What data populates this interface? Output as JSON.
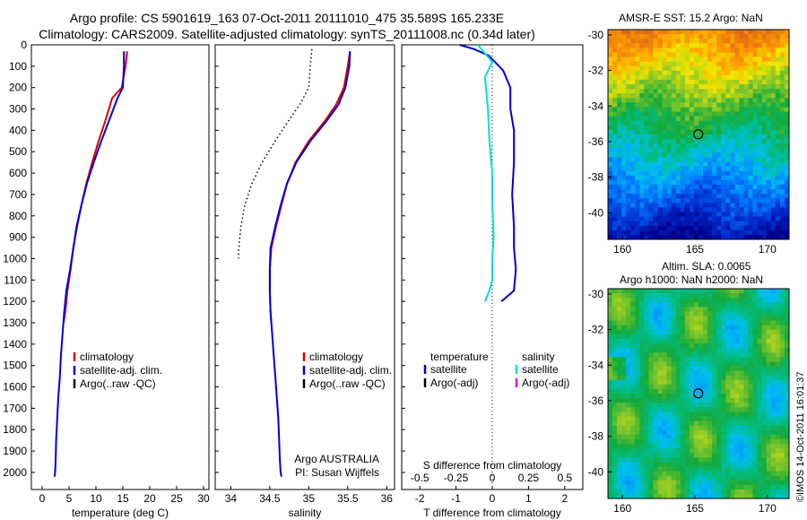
{
  "header": {
    "line1": "Argo profile: CS 5901619_163 07-Oct-2011 20111010_475 35.589S 165.233E",
    "line2": "Climatology: CARS2009. Satellite-adjusted climatology: synTS_20111008.nc (0.34d later)"
  },
  "chart_data": [
    {
      "type": "line",
      "panel": "temperature",
      "xlabel": "temperature (deg C)",
      "ylabel": "",
      "xlim": [
        -2,
        31
      ],
      "ylim": [
        2080,
        0
      ],
      "xticks": [
        0,
        5,
        10,
        15,
        20,
        25,
        30
      ],
      "yticks": [
        0,
        100,
        200,
        300,
        400,
        500,
        600,
        700,
        800,
        900,
        1000,
        1100,
        1200,
        1300,
        1400,
        1500,
        1600,
        1700,
        1800,
        1900,
        2000
      ],
      "legend": [
        "climatology",
        "satellite-adj. clim.",
        "Argo(..raw -QC)"
      ],
      "series": [
        {
          "name": "climatology",
          "color": "#dd0000",
          "x": [
            15.8,
            15.5,
            14.8,
            13.0,
            11.8,
            10.5,
            9.3,
            8.2,
            7.3,
            6.5,
            5.8,
            5.3,
            4.7,
            4.3,
            4.0
          ],
          "y": [
            30,
            100,
            200,
            250,
            350,
            450,
            550,
            650,
            750,
            850,
            950,
            1050,
            1150,
            1250,
            1300
          ]
        },
        {
          "name": "satellite-adj. clim.",
          "color": "#0000dd",
          "x": [
            15.2,
            15.2,
            15.0,
            14.0,
            12.5,
            11.0,
            9.6,
            8.3,
            7.3,
            6.4,
            5.8,
            5.2,
            4.5,
            4.1,
            3.8,
            3.5,
            3.3,
            3.0,
            2.8,
            2.6,
            2.5,
            2.4,
            2.3
          ],
          "y": [
            30,
            100,
            200,
            250,
            350,
            450,
            550,
            650,
            750,
            850,
            950,
            1050,
            1150,
            1250,
            1350,
            1450,
            1550,
            1650,
            1750,
            1850,
            1950,
            2000,
            2020
          ]
        }
      ]
    },
    {
      "type": "line",
      "panel": "salinity",
      "xlabel": "salinity",
      "xlim": [
        33.8,
        36.1
      ],
      "ylim": [
        2080,
        0
      ],
      "xticks": [
        34,
        34.5,
        35,
        35.5,
        36
      ],
      "legend": [
        "climatology",
        "satellite-adj. clim.",
        "Argo(..raw -QC)"
      ],
      "annotation": [
        "Argo AUSTRALIA",
        "PI: Susan Wijffels"
      ],
      "series": [
        {
          "name": "climatology",
          "color": "#dd0000",
          "x": [
            35.53,
            35.5,
            35.45,
            35.35,
            35.2,
            35.0,
            34.83,
            34.72,
            34.65,
            34.58,
            34.52,
            34.5,
            34.5,
            34.51,
            34.52
          ],
          "y": [
            30,
            100,
            200,
            280,
            360,
            450,
            550,
            650,
            750,
            850,
            950,
            1050,
            1150,
            1250,
            1300
          ]
        },
        {
          "name": "satellite-adj. clim.",
          "color": "#0000dd",
          "x": [
            35.53,
            35.52,
            35.47,
            35.38,
            35.22,
            35.02,
            34.84,
            34.72,
            34.64,
            34.57,
            34.51,
            34.5,
            34.5,
            34.51,
            34.53,
            34.55,
            34.57,
            34.59,
            34.61,
            34.62,
            34.63,
            34.64,
            34.65
          ],
          "y": [
            30,
            100,
            200,
            280,
            360,
            450,
            550,
            650,
            750,
            850,
            950,
            1050,
            1150,
            1250,
            1350,
            1450,
            1550,
            1650,
            1750,
            1850,
            1950,
            2000,
            2020
          ]
        },
        {
          "name": "Argo",
          "color": "#000000",
          "dash": true,
          "x": [
            35.04,
            35.02,
            35.0,
            34.9,
            34.75,
            34.57,
            34.4,
            34.27,
            34.18,
            34.13,
            34.11,
            34.1,
            34.1
          ],
          "y": [
            20,
            100,
            200,
            270,
            350,
            450,
            550,
            650,
            750,
            850,
            920,
            970,
            1000
          ]
        }
      ]
    },
    {
      "type": "line",
      "panel": "difference",
      "xlabel": "T difference from climatology",
      "xlabel_top": "S difference from climatology",
      "xlim_T": [
        -2.5,
        2.5
      ],
      "xticks_T": [
        -2,
        -1,
        0,
        1,
        2
      ],
      "xticks_S": [
        "-0.5",
        "-0.25",
        "0",
        "0.25",
        "0.5"
      ],
      "legend_T": {
        "header": "temperature",
        "items": [
          "satellite",
          "Argo(-adj)"
        ]
      },
      "legend_S": {
        "header": "salinity",
        "items": [
          "satellite",
          "Argo(-adj)"
        ]
      },
      "series": [
        {
          "name": "temperature satellite",
          "color": "#0000cc",
          "x": [
            -0.9,
            -0.5,
            -0.1,
            0.3,
            0.5,
            0.5,
            0.6,
            0.6,
            0.55,
            0.6,
            0.6,
            0.65,
            0.6,
            0.25
          ],
          "y": [
            0,
            20,
            50,
            120,
            200,
            300,
            400,
            550,
            700,
            850,
            950,
            1050,
            1150,
            1200
          ]
        },
        {
          "name": "salinity satellite",
          "color": "#00dddd",
          "x": [
            -0.1,
            0.0,
            -0.05,
            -0.03,
            -0.02,
            0.0,
            0.0,
            0.01,
            0.0,
            0.0,
            -0.02,
            -0.05
          ],
          "y": [
            0,
            80,
            150,
            300,
            450,
            600,
            750,
            900,
            1000,
            1100,
            1150,
            1200
          ]
        }
      ]
    },
    {
      "type": "heatmap",
      "panel": "sst_map",
      "title": "AMSR-E SST: 15.2 Argo: NaN",
      "xticks": [
        160,
        165,
        170
      ],
      "yticks": [
        -30,
        -32,
        -34,
        -36,
        -38,
        -40
      ],
      "xlim": [
        159,
        171.5
      ],
      "ylim": [
        -41.5,
        -29.7
      ],
      "marker": [
        165.233,
        -35.589
      ]
    },
    {
      "type": "heatmap",
      "panel": "sla_map",
      "title_line1": "Altim. SLA: 0.0065",
      "title_line2": "Argo h1000: NaN h2000: NaN",
      "xticks": [
        160,
        165,
        170
      ],
      "yticks": [
        -30,
        -32,
        -34,
        -36,
        -38,
        -40
      ],
      "xlim": [
        159,
        171.5
      ],
      "ylim": [
        -41.5,
        -29.7
      ],
      "marker": [
        165.233,
        -35.589
      ]
    }
  ],
  "footer": {
    "credit": "©IMOS 14-Oct-2011 16:01:37"
  }
}
